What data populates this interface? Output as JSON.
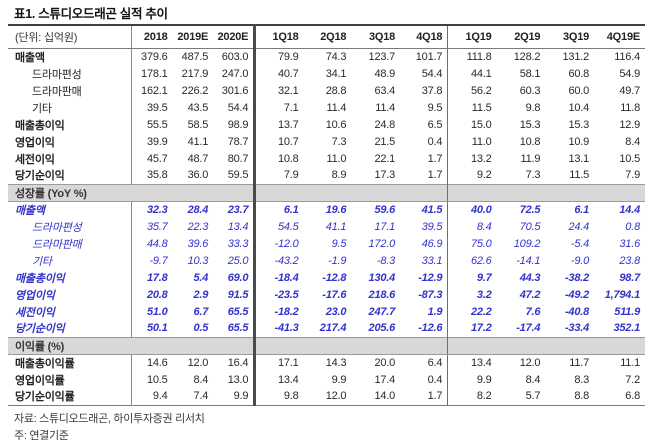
{
  "page": {
    "title": "표1.  스튜디오드래곤 실적 추이",
    "unit_label": "(단위: 십억원)",
    "footnotes": [
      "자료: 스튜디오드래곤, 하이투자증권 리서치",
      "주: 연결기준"
    ]
  },
  "colors": {
    "accent_blue": "#3333cc",
    "section_bar_bg": "#d8d8d8",
    "border_dark": "#3f3f3f",
    "text": "#1f1f1f"
  },
  "table": {
    "columns": [
      "2018",
      "2019E",
      "2020E",
      "1Q18",
      "2Q18",
      "3Q18",
      "4Q18",
      "1Q19",
      "2Q19",
      "3Q19",
      "4Q19E"
    ],
    "sections": [
      {
        "name": null,
        "growth": false,
        "rows": [
          {
            "label": "매출액",
            "bold": true,
            "indent": false,
            "values": [
              "379.6",
              "487.5",
              "603.0",
              "79.9",
              "74.3",
              "123.7",
              "101.7",
              "111.8",
              "128.2",
              "131.2",
              "116.4"
            ]
          },
          {
            "label": "드라마편성",
            "bold": false,
            "indent": true,
            "values": [
              "178.1",
              "217.9",
              "247.0",
              "40.7",
              "34.1",
              "48.9",
              "54.4",
              "44.1",
              "58.1",
              "60.8",
              "54.9"
            ]
          },
          {
            "label": "드라마판매",
            "bold": false,
            "indent": true,
            "values": [
              "162.1",
              "226.2",
              "301.6",
              "32.1",
              "28.8",
              "63.4",
              "37.8",
              "56.2",
              "60.3",
              "60.0",
              "49.7"
            ]
          },
          {
            "label": "기타",
            "bold": false,
            "indent": true,
            "values": [
              "39.5",
              "43.5",
              "54.4",
              "7.1",
              "11.4",
              "11.4",
              "9.5",
              "11.5",
              "9.8",
              "10.4",
              "11.8"
            ]
          },
          {
            "label": "매출총이익",
            "bold": true,
            "indent": false,
            "values": [
              "55.5",
              "58.5",
              "98.9",
              "13.7",
              "10.6",
              "24.8",
              "6.5",
              "15.0",
              "15.3",
              "15.3",
              "12.9"
            ]
          },
          {
            "label": "영업이익",
            "bold": true,
            "indent": false,
            "values": [
              "39.9",
              "41.1",
              "78.7",
              "10.7",
              "7.3",
              "21.5",
              "0.4",
              "11.0",
              "10.8",
              "10.9",
              "8.4"
            ]
          },
          {
            "label": "세전이익",
            "bold": true,
            "indent": false,
            "values": [
              "45.7",
              "48.7",
              "80.7",
              "10.8",
              "11.0",
              "22.1",
              "1.7",
              "13.2",
              "11.9",
              "13.1",
              "10.5"
            ]
          },
          {
            "label": "당기순이익",
            "bold": true,
            "indent": false,
            "values": [
              "35.8",
              "36.0",
              "59.5",
              "7.9",
              "8.9",
              "17.3",
              "1.7",
              "9.2",
              "7.3",
              "11.5",
              "7.9"
            ]
          }
        ]
      },
      {
        "name": "성장률 (YoY %)",
        "growth": true,
        "rows": [
          {
            "label": "매출액",
            "bold": true,
            "indent": false,
            "values": [
              "32.3",
              "28.4",
              "23.7",
              "6.1",
              "19.6",
              "59.6",
              "41.5",
              "40.0",
              "72.5",
              "6.1",
              "14.4"
            ]
          },
          {
            "label": "드라마편성",
            "bold": false,
            "indent": true,
            "values": [
              "35.7",
              "22.3",
              "13.4",
              "54.5",
              "41.1",
              "17.1",
              "39.5",
              "8.4",
              "70.5",
              "24.4",
              "0.8"
            ]
          },
          {
            "label": "드라마판매",
            "bold": false,
            "indent": true,
            "values": [
              "44.8",
              "39.6",
              "33.3",
              "-12.0",
              "9.5",
              "172.0",
              "46.9",
              "75.0",
              "109.2",
              "-5.4",
              "31.6"
            ]
          },
          {
            "label": "기타",
            "bold": false,
            "indent": true,
            "values": [
              "-9.7",
              "10.3",
              "25.0",
              "-43.2",
              "-1.9",
              "-8.3",
              "33.1",
              "62.6",
              "-14.1",
              "-9.0",
              "23.8"
            ]
          },
          {
            "label": "매출총이익",
            "bold": true,
            "indent": false,
            "values": [
              "17.8",
              "5.4",
              "69.0",
              "-18.4",
              "-12.8",
              "130.4",
              "-12.9",
              "9.7",
              "44.3",
              "-38.2",
              "98.7"
            ]
          },
          {
            "label": "영업이익",
            "bold": true,
            "indent": false,
            "values": [
              "20.8",
              "2.9",
              "91.5",
              "-23.5",
              "-17.6",
              "218.6",
              "-87.3",
              "3.2",
              "47.2",
              "-49.2",
              "1,794.1"
            ]
          },
          {
            "label": "세전이익",
            "bold": true,
            "indent": false,
            "values": [
              "51.0",
              "6.7",
              "65.5",
              "-18.2",
              "23.0",
              "247.7",
              "1.9",
              "22.2",
              "7.6",
              "-40.8",
              "511.9"
            ]
          },
          {
            "label": "당기순이익",
            "bold": true,
            "indent": false,
            "values": [
              "50.1",
              "0.5",
              "65.5",
              "-41.3",
              "217.4",
              "205.6",
              "-12.6",
              "17.2",
              "-17.4",
              "-33.4",
              "352.1"
            ]
          }
        ]
      },
      {
        "name": "이익률 (%)",
        "growth": false,
        "rows": [
          {
            "label": "매출총이익률",
            "bold": true,
            "indent": false,
            "values": [
              "14.6",
              "12.0",
              "16.4",
              "17.1",
              "14.3",
              "20.0",
              "6.4",
              "13.4",
              "12.0",
              "11.7",
              "11.1"
            ]
          },
          {
            "label": "영업이익률",
            "bold": true,
            "indent": false,
            "values": [
              "10.5",
              "8.4",
              "13.0",
              "13.4",
              "9.9",
              "17.4",
              "0.4",
              "9.9",
              "8.4",
              "8.3",
              "7.2"
            ]
          },
          {
            "label": "당기순이익률",
            "bold": true,
            "indent": false,
            "values": [
              "9.4",
              "7.4",
              "9.9",
              "9.8",
              "12.0",
              "14.0",
              "1.7",
              "8.2",
              "5.7",
              "8.8",
              "6.8"
            ]
          }
        ]
      }
    ]
  }
}
